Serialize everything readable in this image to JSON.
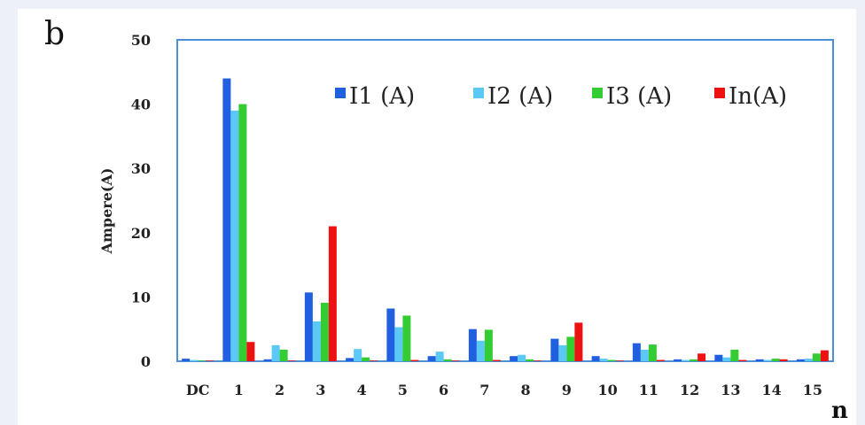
{
  "panel_label": "b",
  "x_unit_label": "n",
  "chart_data": {
    "type": "bar",
    "title": "",
    "xlabel": "n",
    "ylabel": "Ampere(A)",
    "ylim": [
      0,
      50
    ],
    "yticks": [
      0,
      10,
      20,
      30,
      40,
      50
    ],
    "grid": false,
    "legend_position": "top-right",
    "categories": [
      "DC",
      "1",
      "2",
      "3",
      "4",
      "5",
      "6",
      "7",
      "8",
      "9",
      "10",
      "11",
      "12",
      "13",
      "14",
      "15"
    ],
    "series": [
      {
        "name": "I1 (A)",
        "color": "#1f5fe0",
        "values": [
          0.4,
          44,
          0.3,
          10.7,
          0.5,
          8.2,
          0.8,
          5.0,
          0.8,
          3.5,
          0.8,
          2.8,
          0.3,
          1.0,
          0.3,
          0.3
        ]
      },
      {
        "name": "I2 (A)",
        "color": "#5cc8f5",
        "values": [
          0.2,
          39,
          2.5,
          6.2,
          1.9,
          5.3,
          1.5,
          3.2,
          1.0,
          2.5,
          0.4,
          1.8,
          0.2,
          0.6,
          0.2,
          0.4
        ]
      },
      {
        "name": "I3 (A)",
        "color": "#33cc33",
        "values": [
          0.1,
          40,
          1.8,
          9.1,
          0.6,
          7.1,
          0.3,
          4.9,
          0.3,
          3.8,
          0.2,
          2.6,
          0.3,
          1.8,
          0.4,
          1.2
        ]
      },
      {
        "name": "In(A)",
        "color": "#ee1111",
        "values": [
          0.1,
          3,
          0.1,
          21,
          0.1,
          0.2,
          0.1,
          0.2,
          0.1,
          6,
          0.1,
          0.2,
          1.2,
          0.2,
          0.3,
          1.7
        ]
      }
    ]
  }
}
